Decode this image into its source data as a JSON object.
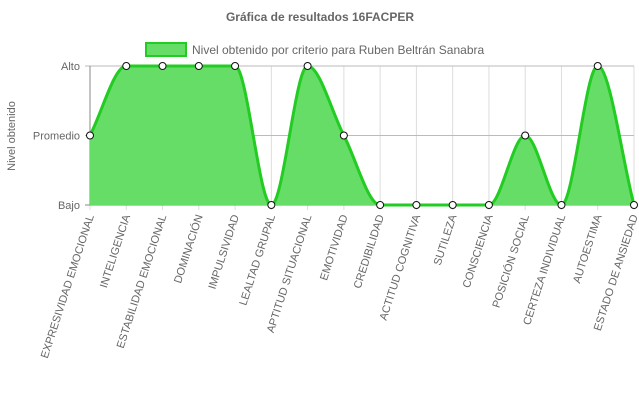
{
  "chart_data": {
    "type": "area",
    "title": "Gráfica de resultados 16FACPER",
    "ylabel": "Nivel obtenido",
    "xlabel": "",
    "y_categories": [
      "Bajo",
      "Promedio",
      "Alto"
    ],
    "ylim": [
      0,
      2
    ],
    "categories": [
      "EXPRESIVIDAD EMOCIONAL",
      "INTELIGENCIA",
      "ESTABILIDAD EMOCIONAL",
      "DOMINACIÓN",
      "IMPULSIVIDAD",
      "LEALTAD GRUPAL",
      "APTITUD SITUACIONAL",
      "EMOTIVIDAD",
      "CREDIBILIDAD",
      "ACTITUD COGNITIVA",
      "SUTILEZA",
      "CONSCIENCIA",
      "POSICIÓN SOCIAL",
      "CERTEZA INDIVIDUAL",
      "AUTOESTIMA",
      "ESTADO DE ANSIEDAD"
    ],
    "series": [
      {
        "name": "Nivel obtenido por criterio para Ruben Beltrán Sanabra",
        "values": [
          1,
          2,
          2,
          2,
          2,
          0,
          2,
          1,
          0,
          0,
          0,
          0,
          1,
          0,
          2,
          0
        ]
      }
    ],
    "grid": true,
    "legend_position": "top",
    "colors": {
      "fill": "#66dd66",
      "line": "#22cc22",
      "grid": "#dddddd",
      "axis": "#888888",
      "text": "#666666"
    }
  }
}
